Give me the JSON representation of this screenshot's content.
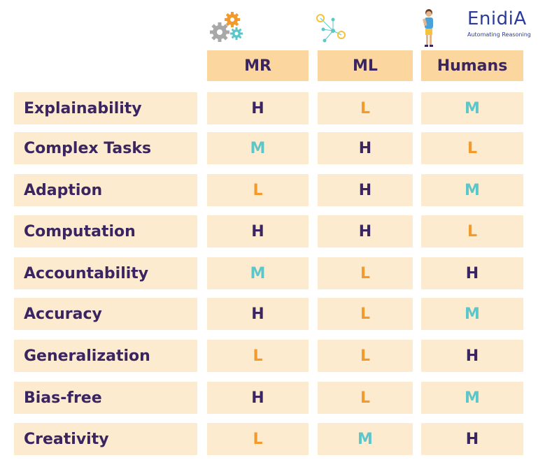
{
  "columns": [
    "MR",
    "ML",
    "Humans"
  ],
  "logo": {
    "text": "EnidiA",
    "mirrored": "IA",
    "tagline": "Automating Reasoning"
  },
  "icons": [
    "gears-icon",
    "network-nodes-icon",
    "person-thinking-icon"
  ],
  "rows": [
    {
      "label": "Explainability",
      "values": [
        "H",
        "L",
        "M"
      ]
    },
    {
      "label": "Complex Tasks",
      "values": [
        "M",
        "H",
        "L"
      ]
    },
    {
      "label": "Adaption",
      "values": [
        "L",
        "H",
        "M"
      ]
    },
    {
      "label": "Computation",
      "values": [
        "H",
        "H",
        "L"
      ]
    },
    {
      "label": "Accountability",
      "values": [
        "M",
        "L",
        "H"
      ]
    },
    {
      "label": "Accuracy",
      "values": [
        "H",
        "L",
        "M"
      ]
    },
    {
      "label": "Generalization",
      "values": [
        "L",
        "L",
        "H"
      ]
    },
    {
      "label": "Bias-free",
      "values": [
        "H",
        "L",
        "M"
      ]
    },
    {
      "label": "Creativity",
      "values": [
        "L",
        "M",
        "H"
      ]
    }
  ],
  "colors": {
    "H": "#3a2560",
    "M": "#5cc6c8",
    "L": "#f39a2c",
    "header_bg": "#fbd79f",
    "cell_bg": "#fdebd0"
  }
}
